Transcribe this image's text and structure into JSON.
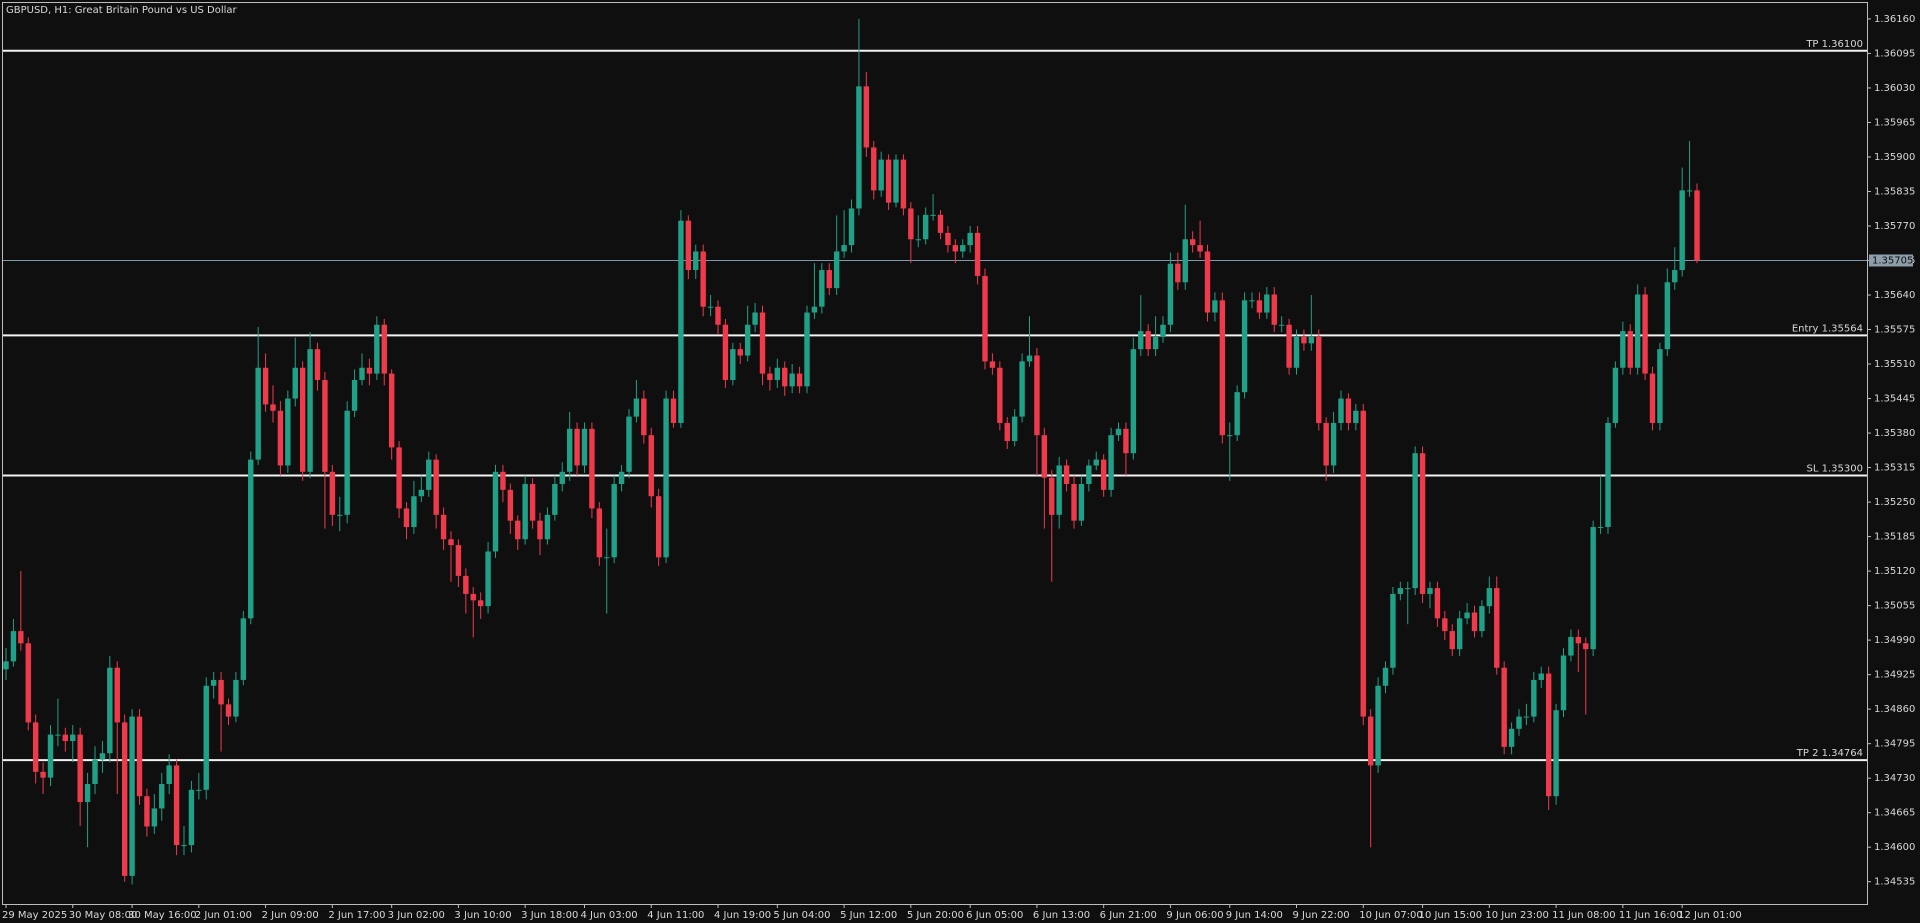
{
  "chart_data": {
    "type": "candlestick",
    "title": "GBPUSD, H1:  Great Britain Pound vs US Dollar",
    "up_color": "#1fa187",
    "down_color": "#f03a4b",
    "categories": [
      "29 May 2025",
      null,
      null,
      null,
      null,
      null,
      null,
      null,
      null,
      "30 May 08:00",
      null,
      null,
      null,
      null,
      null,
      null,
      null,
      "30 May 16:00",
      null,
      null,
      null,
      null,
      null,
      null,
      null,
      null,
      "2 Jun 01:00",
      null,
      null,
      null,
      null,
      null,
      null,
      null,
      null,
      "2 Jun 09:00",
      null,
      null,
      null,
      null,
      null,
      null,
      null,
      null,
      "2 Jun 17:00",
      null,
      null,
      null,
      null,
      null,
      null,
      null,
      "3 Jun 02:00",
      null,
      null,
      null,
      null,
      null,
      null,
      null,
      null,
      "3 Jun 10:00",
      null,
      null,
      null,
      null,
      null,
      null,
      null,
      null,
      "3 Jun 18:00",
      null,
      null,
      null,
      null,
      null,
      null,
      null,
      "4 Jun 03:00",
      null,
      null,
      null,
      null,
      null,
      null,
      null,
      null,
      "4 Jun 11:00",
      null,
      null,
      null,
      null,
      null,
      null,
      null,
      null,
      "4 Jun 19:00",
      null,
      null,
      null,
      null,
      null,
      null,
      null,
      "5 Jun 04:00",
      null,
      null,
      null,
      null,
      null,
      null,
      null,
      null,
      "5 Jun 12:00",
      null,
      null,
      null,
      null,
      null,
      null,
      null,
      null,
      "5 Jun 20:00",
      null,
      null,
      null,
      null,
      null,
      null,
      null,
      "6 Jun 05:00",
      null,
      null,
      null,
      null,
      null,
      null,
      null,
      null,
      "6 Jun 13:00",
      null,
      null,
      null,
      null,
      null,
      null,
      null,
      null,
      "6 Jun 21:00",
      null,
      null,
      null,
      null,
      null,
      null,
      null,
      null,
      "9 Jun 06:00",
      null,
      null,
      null,
      null,
      null,
      null,
      null,
      "9 Jun 14:00",
      null,
      null,
      null,
      null,
      null,
      null,
      null,
      null,
      "9 Jun 22:00",
      null,
      null,
      null,
      null,
      null,
      null,
      null,
      null,
      "10 Jun 07:00",
      null,
      null,
      null,
      null,
      null,
      null,
      null,
      "10 Jun 15:00",
      null,
      null,
      null,
      null,
      null,
      null,
      null,
      null,
      "10 Jun 23:00",
      null,
      null,
      null,
      null,
      null,
      null,
      null,
      null,
      "11 Jun 08:00",
      null,
      null,
      null,
      null,
      null,
      null,
      null,
      null,
      "11 Jun 16:00",
      null,
      null,
      null,
      null,
      null,
      null,
      null,
      "12 Jun 01:00",
      null,
      null
    ],
    "open": [
      1.34935,
      1.3495,
      1.35007,
      1.34984,
      1.34835,
      1.34742,
      1.34731,
      1.34812,
      1.34812,
      1.348,
      1.34812,
      1.34685,
      1.34719,
      1.34765,
      1.34777,
      1.34938,
      1.34835,
      1.34546,
      1.34846,
      1.34696,
      1.34639,
      1.34673,
      1.34719,
      1.34754,
      1.34604,
      1.34604,
      1.34708,
      1.34708,
      1.34904,
      1.34915,
      1.34869,
      1.34846,
      1.34915,
      1.35031,
      1.3533,
      1.35503,
      1.35434,
      1.35422,
      1.35319,
      1.35445,
      1.35503,
      1.35307,
      1.35538,
      1.3548,
      1.35307,
      1.35226,
      1.35226,
      1.35422,
      1.3548,
      1.35503,
      1.35492,
      1.35584,
      1.35492,
      1.35353,
      1.35238,
      1.35203,
      1.35261,
      1.35273,
      1.3533,
      1.35226,
      1.3518,
      1.35169,
      1.35111,
      1.35077,
      1.35065,
      1.35054,
      1.35157,
      1.35307,
      1.35273,
      1.35215,
      1.3518,
      1.35284,
      1.35215,
      1.3518,
      1.35226,
      1.35284,
      1.35307,
      1.35388,
      1.35319,
      1.35388,
      1.35238,
      1.35146,
      1.35146,
      1.35284,
      1.35307,
      1.35411,
      1.35445,
      1.35376,
      1.35261,
      1.35146,
      1.35445,
      1.35399,
      1.3578,
      1.35687,
      1.35722,
      1.35618,
      1.35618,
      1.35584,
      1.3548,
      1.35538,
      1.35526,
      1.35584,
      1.35607,
      1.35492,
      1.3548,
      1.35503,
      1.35468,
      1.35492,
      1.35468,
      1.35607,
      1.35618,
      1.35687,
      1.35653,
      1.35722,
      1.35734,
      1.35803,
      1.36033,
      1.35918,
      1.35837,
      1.35895,
      1.35814,
      1.35895,
      1.35803,
      1.35745,
      1.35745,
      1.35791,
      1.35791,
      1.35757,
      1.35734,
      1.35722,
      1.35734,
      1.35757,
      1.35676,
      1.35515,
      1.35503,
      1.35399,
      1.35365,
      1.35411,
      1.35515,
      1.35526,
      1.35376,
      1.35296,
      1.35226,
      1.35319,
      1.35284,
      1.35215,
      1.35284,
      1.35319,
      1.3533,
      1.35273,
      1.35376,
      1.35388,
      1.35342,
      1.35538,
      1.35572,
      1.35538,
      1.35561,
      1.35584,
      1.35699,
      1.35664,
      1.35745,
      1.35734,
      1.35722,
      1.35607,
      1.3563,
      1.35376,
      1.35376,
      1.35457,
      1.3563,
      1.3563,
      1.35607,
      1.35641,
      1.35584,
      1.35584,
      1.35503,
      1.35561,
      1.35549,
      1.35561,
      1.35399,
      1.35319,
      1.35399,
      1.35445,
      1.35399,
      1.35422,
      1.34846,
      1.34754,
      1.34904,
      1.34938,
      1.35077,
      1.35088,
      1.35088,
      1.35342,
      1.35077,
      1.35088,
      1.35031,
      1.35007,
      1.34973,
      1.35031,
      1.35042,
      1.35007,
      1.35054,
      1.35088,
      1.34938,
      1.34789,
      1.34823,
      1.34846,
      1.34846,
      1.34915,
      1.34927,
      1.34696,
      1.34858,
      1.34961,
      1.34996,
      1.34984,
      1.34973,
      1.35203,
      1.35203,
      1.35399,
      1.35503,
      1.35572,
      1.35503,
      1.35641,
      1.35492,
      1.35399,
      1.35538,
      1.35664,
      1.35687,
      1.35837,
      1.35837
    ],
    "high": [
      1.34975,
      1.3503,
      1.3512,
      1.34995,
      1.3485,
      1.3476,
      1.3483,
      1.3488,
      1.34825,
      1.3483,
      1.34825,
      1.3474,
      1.3479,
      1.348,
      1.3496,
      1.3495,
      1.3485,
      1.3486,
      1.3486,
      1.3471,
      1.347,
      1.3474,
      1.34775,
      1.34765,
      1.3464,
      1.34725,
      1.3474,
      1.3492,
      1.3493,
      1.3493,
      1.3488,
      1.3493,
      1.35045,
      1.35345,
      1.3558,
      1.3553,
      1.3547,
      1.3544,
      1.3546,
      1.3556,
      1.35515,
      1.3557,
      1.3555,
      1.35495,
      1.3532,
      1.3526,
      1.3544,
      1.355,
      1.3553,
      1.3552,
      1.356,
      1.35595,
      1.355,
      1.35365,
      1.3525,
      1.3529,
      1.353,
      1.35345,
      1.3534,
      1.3524,
      1.35195,
      1.3518,
      1.35125,
      1.3509,
      1.3508,
      1.35175,
      1.3532,
      1.3532,
      1.35285,
      1.35225,
      1.353,
      1.35295,
      1.3523,
      1.3524,
      1.353,
      1.35325,
      1.3542,
      1.354,
      1.354,
      1.354,
      1.3525,
      1.352,
      1.353,
      1.3532,
      1.35425,
      1.3548,
      1.3546,
      1.3539,
      1.35275,
      1.3546,
      1.3546,
      1.358,
      1.3579,
      1.35735,
      1.35735,
      1.3564,
      1.3563,
      1.35595,
      1.3555,
      1.3555,
      1.3562,
      1.35625,
      1.3562,
      1.35505,
      1.3552,
      1.35515,
      1.3551,
      1.35505,
      1.3562,
      1.357,
      1.357,
      1.357,
      1.3579,
      1.358,
      1.3582,
      1.3616,
      1.3606,
      1.3593,
      1.3591,
      1.35905,
      1.35905,
      1.35905,
      1.35815,
      1.3579,
      1.35805,
      1.3583,
      1.358,
      1.3577,
      1.35745,
      1.35745,
      1.3577,
      1.3577,
      1.3569,
      1.3553,
      1.35515,
      1.3541,
      1.35425,
      1.3553,
      1.356,
      1.3554,
      1.3539,
      1.3531,
      1.35335,
      1.3533,
      1.353,
      1.353,
      1.3533,
      1.35345,
      1.3534,
      1.3539,
      1.354,
      1.354,
      1.3556,
      1.3564,
      1.35585,
      1.356,
      1.356,
      1.3572,
      1.3572,
      1.3581,
      1.3576,
      1.3578,
      1.35735,
      1.35645,
      1.35645,
      1.354,
      1.3547,
      1.35645,
      1.35645,
      1.35645,
      1.35655,
      1.35655,
      1.356,
      1.35595,
      1.35575,
      1.35575,
      1.3564,
      1.35575,
      1.3541,
      1.3542,
      1.3546,
      1.35455,
      1.35435,
      1.35435,
      1.3486,
      1.3492,
      1.3495,
      1.3509,
      1.351,
      1.351,
      1.35355,
      1.35355,
      1.351,
      1.351,
      1.35045,
      1.3502,
      1.35045,
      1.3506,
      1.35055,
      1.35065,
      1.3511,
      1.3511,
      1.3495,
      1.34835,
      1.3486,
      1.3487,
      1.3493,
      1.3494,
      1.3494,
      1.3487,
      1.34975,
      1.3501,
      1.3501,
      1.34995,
      1.35215,
      1.353,
      1.3541,
      1.35515,
      1.3559,
      1.35585,
      1.3566,
      1.35655,
      1.35505,
      1.3555,
      1.3569,
      1.3573,
      1.3588,
      1.3593,
      1.3585
    ],
    "low": [
      1.34915,
      1.3494,
      1.3497,
      1.3482,
      1.3472,
      1.347,
      1.34715,
      1.3479,
      1.3478,
      1.3476,
      1.3464,
      1.346,
      1.347,
      1.3474,
      1.3476,
      1.347,
      1.34535,
      1.3453,
      1.3468,
      1.3462,
      1.34625,
      1.3465,
      1.347,
      1.34585,
      1.34585,
      1.3459,
      1.3469,
      1.3469,
      1.3488,
      1.3478,
      1.3483,
      1.34835,
      1.34905,
      1.3502,
      1.3532,
      1.3542,
      1.354,
      1.353,
      1.35305,
      1.3543,
      1.3529,
      1.35295,
      1.3546,
      1.352,
      1.35205,
      1.35195,
      1.3521,
      1.3541,
      1.3547,
      1.3547,
      1.3548,
      1.3547,
      1.3533,
      1.3522,
      1.3518,
      1.3519,
      1.3525,
      1.3526,
      1.352,
      1.3516,
      1.351,
      1.3509,
      1.3504,
      1.34995,
      1.3503,
      1.3504,
      1.35145,
      1.3525,
      1.3519,
      1.3516,
      1.3517,
      1.352,
      1.3515,
      1.3517,
      1.35215,
      1.3527,
      1.3529,
      1.353,
      1.35305,
      1.3522,
      1.3513,
      1.3504,
      1.35135,
      1.3527,
      1.35295,
      1.354,
      1.3536,
      1.3524,
      1.3513,
      1.35135,
      1.3539,
      1.3539,
      1.3567,
      1.3567,
      1.356,
      1.356,
      1.35565,
      1.35465,
      1.3547,
      1.3551,
      1.35515,
      1.3557,
      1.3547,
      1.3546,
      1.35465,
      1.3545,
      1.35455,
      1.35455,
      1.35455,
      1.35595,
      1.35605,
      1.3564,
      1.3564,
      1.3571,
      1.3572,
      1.3579,
      1.359,
      1.3582,
      1.35825,
      1.358,
      1.35805,
      1.3579,
      1.357,
      1.3573,
      1.35735,
      1.3578,
      1.35745,
      1.3572,
      1.357,
      1.3571,
      1.3572,
      1.3566,
      1.355,
      1.3549,
      1.35385,
      1.3535,
      1.35355,
      1.354,
      1.35505,
      1.353,
      1.352,
      1.351,
      1.352,
      1.3527,
      1.352,
      1.35205,
      1.3527,
      1.3531,
      1.3526,
      1.3526,
      1.35365,
      1.353,
      1.3533,
      1.35525,
      1.35525,
      1.35525,
      1.3555,
      1.3557,
      1.3565,
      1.3565,
      1.3572,
      1.3571,
      1.3559,
      1.3559,
      1.3536,
      1.3529,
      1.35365,
      1.35445,
      1.35615,
      1.35595,
      1.35595,
      1.3557,
      1.3557,
      1.3549,
      1.3549,
      1.35535,
      1.35535,
      1.35385,
      1.3529,
      1.35305,
      1.35385,
      1.35385,
      1.35385,
      1.3483,
      1.346,
      1.3474,
      1.3489,
      1.34925,
      1.35065,
      1.3502,
      1.35075,
      1.3506,
      1.3505,
      1.35015,
      1.3499,
      1.3496,
      1.3496,
      1.3502,
      1.34995,
      1.34995,
      1.3504,
      1.34925,
      1.34775,
      1.34775,
      1.3481,
      1.3483,
      1.34835,
      1.349,
      1.3467,
      1.3468,
      1.34845,
      1.3495,
      1.3493,
      1.3485,
      1.3496,
      1.3519,
      1.3519,
      1.3539,
      1.3549,
      1.3549,
      1.3549,
      1.3548,
      1.35385,
      1.35385,
      1.35525,
      1.3565,
      1.35675,
      1.35825,
      1.357
    ],
    "close": [
      1.3495,
      1.35007,
      1.34984,
      1.34835,
      1.34742,
      1.34731,
      1.34812,
      1.34812,
      1.348,
      1.34812,
      1.34685,
      1.34719,
      1.34765,
      1.34777,
      1.34938,
      1.34835,
      1.34546,
      1.34846,
      1.34696,
      1.34639,
      1.34673,
      1.34719,
      1.34754,
      1.34604,
      1.34604,
      1.34708,
      1.34708,
      1.34904,
      1.34915,
      1.34869,
      1.34846,
      1.34915,
      1.35031,
      1.3533,
      1.35503,
      1.35434,
      1.35422,
      1.35319,
      1.35445,
      1.35503,
      1.35307,
      1.35538,
      1.3548,
      1.35307,
      1.35226,
      1.35226,
      1.35422,
      1.3548,
      1.35503,
      1.35492,
      1.35584,
      1.35492,
      1.35353,
      1.35238,
      1.35203,
      1.35261,
      1.35273,
      1.3533,
      1.35226,
      1.3518,
      1.35169,
      1.35111,
      1.35077,
      1.35065,
      1.35054,
      1.35157,
      1.35307,
      1.35273,
      1.35215,
      1.3518,
      1.35284,
      1.35215,
      1.3518,
      1.35226,
      1.35284,
      1.35307,
      1.35388,
      1.35319,
      1.35388,
      1.35238,
      1.35146,
      1.35146,
      1.35284,
      1.35307,
      1.35411,
      1.35445,
      1.35376,
      1.35261,
      1.35146,
      1.35445,
      1.35399,
      1.3578,
      1.35687,
      1.35722,
      1.35618,
      1.35618,
      1.35584,
      1.3548,
      1.35538,
      1.35526,
      1.35584,
      1.35607,
      1.35492,
      1.3548,
      1.35503,
      1.35468,
      1.35492,
      1.35468,
      1.35607,
      1.35618,
      1.35687,
      1.35653,
      1.35722,
      1.35734,
      1.35803,
      1.36033,
      1.35918,
      1.35837,
      1.35895,
      1.35814,
      1.35895,
      1.35803,
      1.35745,
      1.35745,
      1.35791,
      1.35791,
      1.35757,
      1.35734,
      1.35722,
      1.35734,
      1.35757,
      1.35676,
      1.35515,
      1.35503,
      1.35399,
      1.35365,
      1.35411,
      1.35515,
      1.35526,
      1.35376,
      1.35296,
      1.35226,
      1.35319,
      1.35284,
      1.35215,
      1.35284,
      1.35319,
      1.3533,
      1.35273,
      1.35376,
      1.35388,
      1.35342,
      1.35538,
      1.35572,
      1.35538,
      1.35561,
      1.35584,
      1.35699,
      1.35664,
      1.35745,
      1.35734,
      1.35722,
      1.35607,
      1.3563,
      1.35376,
      1.35376,
      1.35457,
      1.3563,
      1.3563,
      1.35607,
      1.35641,
      1.35584,
      1.35584,
      1.35503,
      1.35561,
      1.35549,
      1.35561,
      1.35399,
      1.35319,
      1.35399,
      1.35445,
      1.35399,
      1.35422,
      1.34846,
      1.34754,
      1.34904,
      1.34938,
      1.35077,
      1.35088,
      1.35088,
      1.35342,
      1.35077,
      1.35088,
      1.35031,
      1.35007,
      1.34973,
      1.35031,
      1.35042,
      1.35007,
      1.35054,
      1.35088,
      1.34938,
      1.34789,
      1.34823,
      1.34846,
      1.34846,
      1.34915,
      1.34927,
      1.34696,
      1.34858,
      1.34961,
      1.34996,
      1.34984,
      1.34973,
      1.35203,
      1.35203,
      1.35399,
      1.35503,
      1.35572,
      1.35503,
      1.35641,
      1.35492,
      1.35399,
      1.35538,
      1.35664,
      1.35687,
      1.35837,
      1.35837,
      1.35705
    ],
    "ylim": [
      1.34493,
      1.3619
    ],
    "yticks": [
      1.34535,
      {
        "value": 1.346,
        "label": "1.34600"
      },
      1.34665,
      {
        "value": 1.3473,
        "label": "1.34730"
      },
      1.34795,
      {
        "value": 1.3486,
        "label": "1.34860"
      },
      1.34925,
      {
        "value": 1.3499,
        "label": "1.34990"
      },
      1.35055,
      {
        "value": 1.3512,
        "label": "1.35120"
      },
      1.35185,
      {
        "value": 1.3525,
        "label": "1.35250"
      },
      1.35315,
      {
        "value": 1.3538,
        "label": "1.35380"
      },
      1.35445,
      {
        "value": 1.3551,
        "label": "1.35510"
      },
      1.35575,
      {
        "value": 1.3564,
        "label": "1.35640"
      },
      1.35705,
      {
        "value": 1.3577,
        "label": "1.35770"
      },
      1.35835,
      {
        "value": 1.359,
        "label": "1.35900"
      },
      1.35965,
      {
        "value": 1.3603,
        "label": "1.36030"
      },
      1.36095,
      {
        "value": 1.3616,
        "label": "1.36160"
      }
    ],
    "levels": [
      {
        "label": "TP 1.36100",
        "value": 1.361
      },
      {
        "label": "Entry 1.35564",
        "value": 1.35564
      },
      {
        "label": "SL 1.35300",
        "value": 1.353
      },
      {
        "label": "TP 2 1.34764",
        "value": 1.34764
      }
    ],
    "price_line": {
      "value": 1.35705,
      "label": "1.35705"
    }
  }
}
